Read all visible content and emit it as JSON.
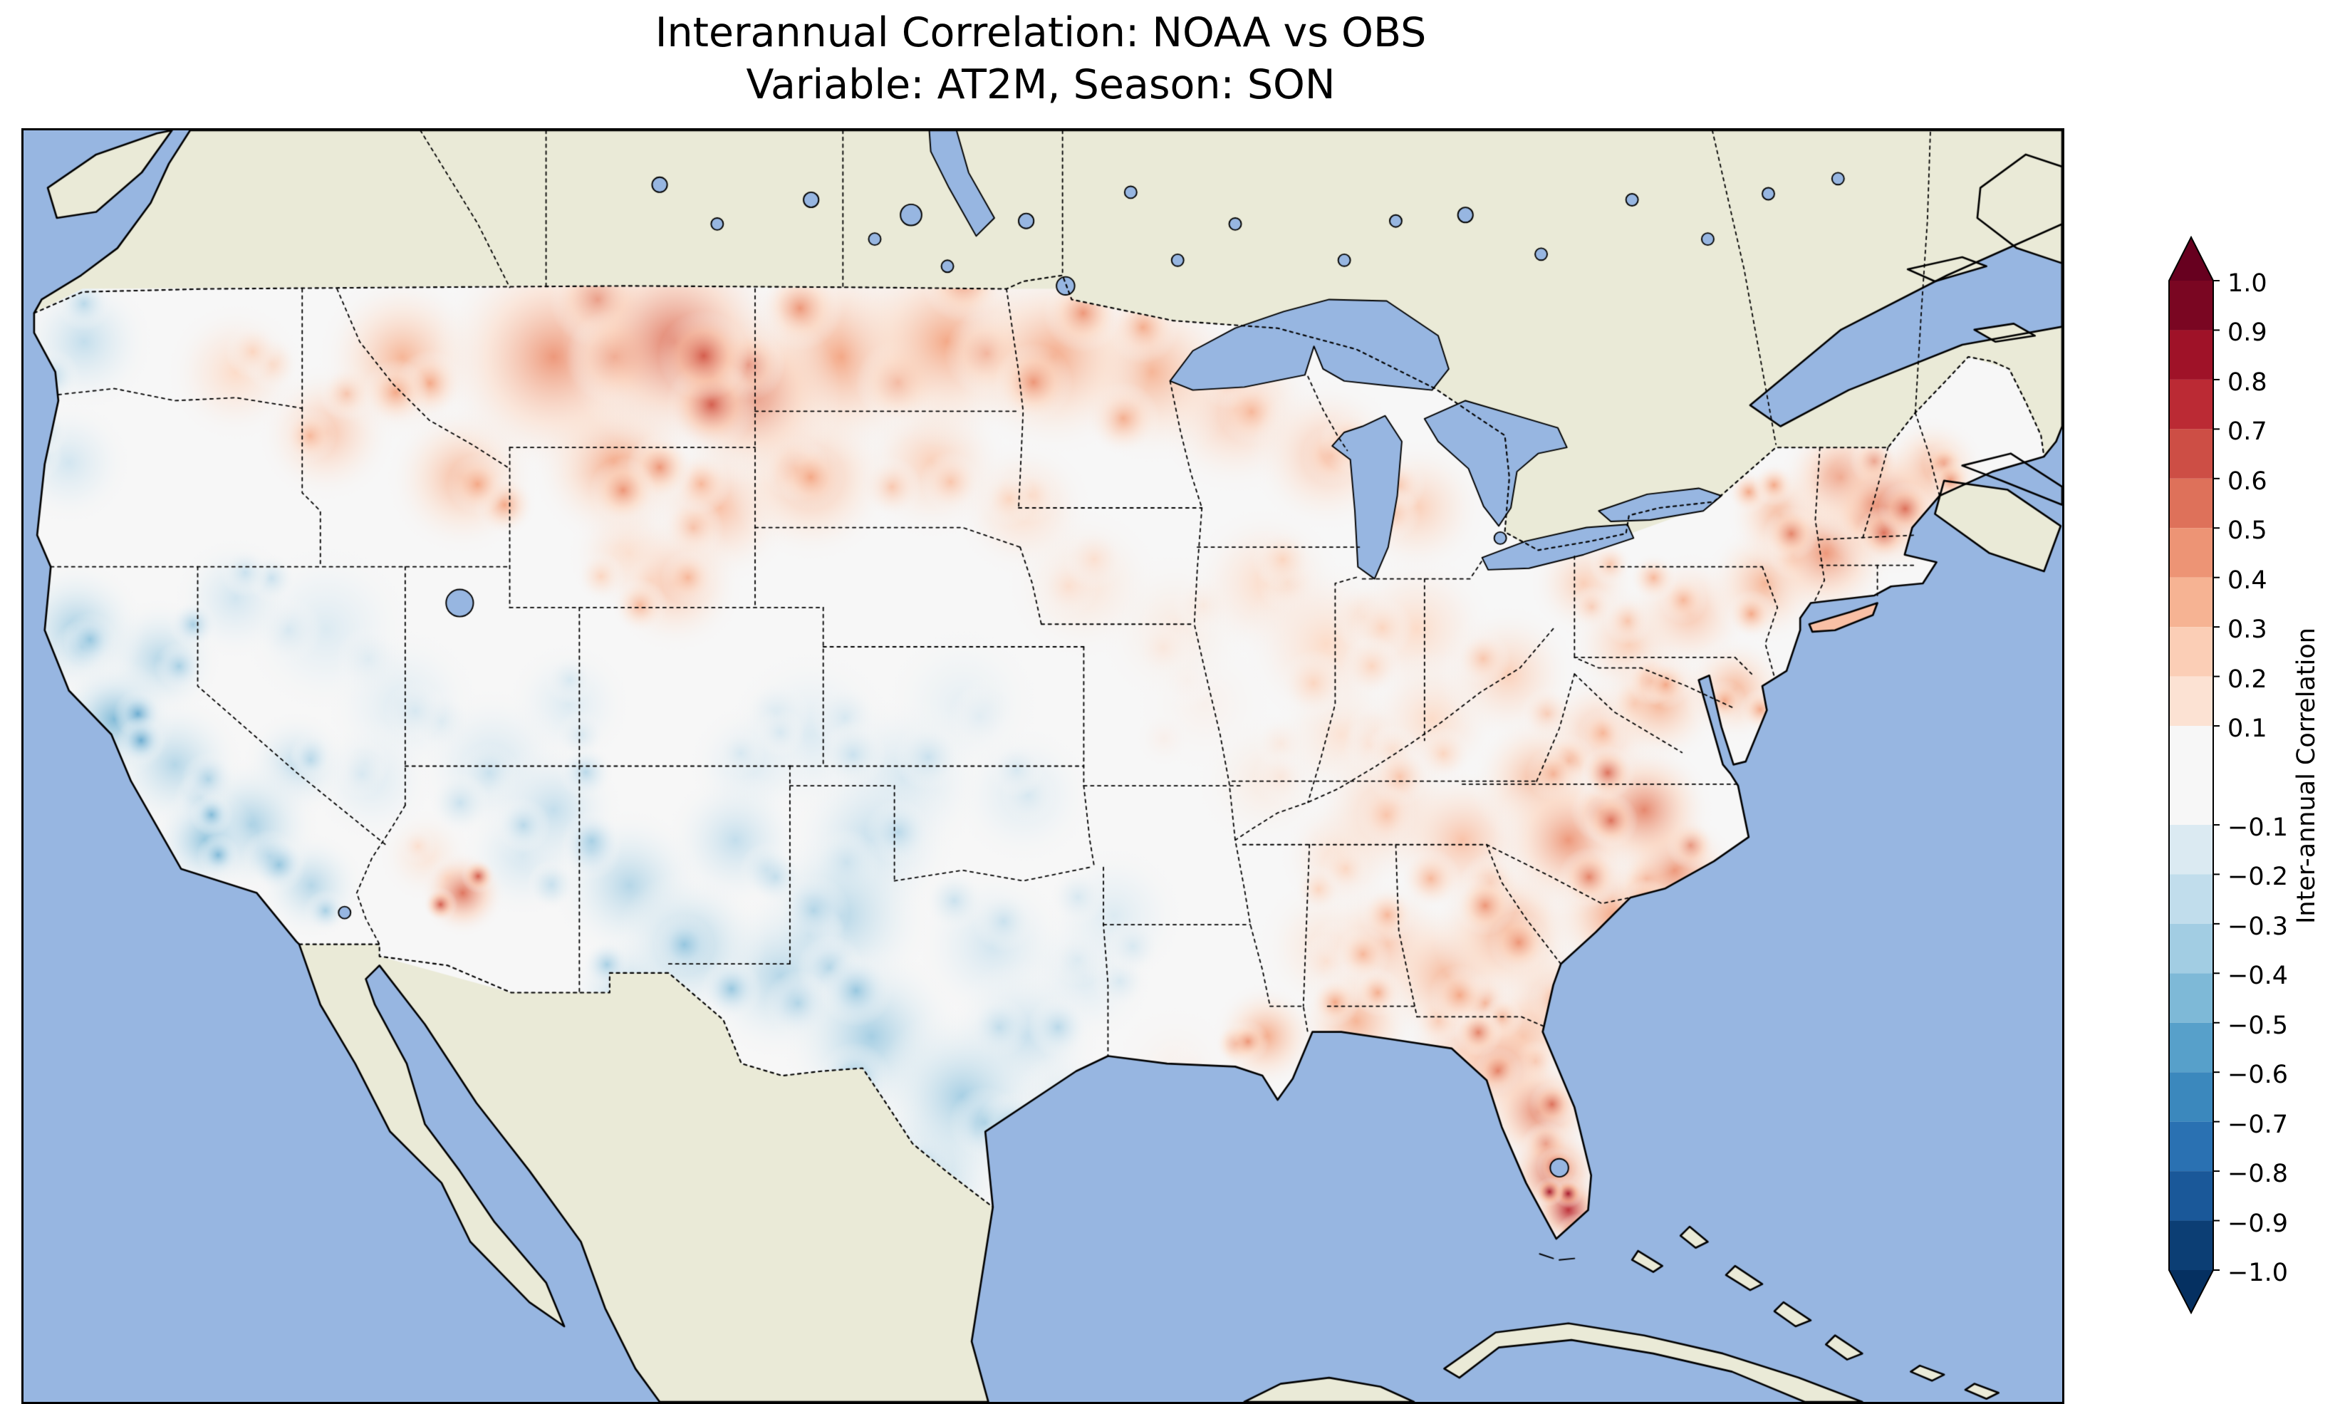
{
  "title": {
    "line1": "Interannual Correlation: NOAA vs OBS",
    "line2": "Variable: AT2M, Season: SON"
  },
  "colorbar": {
    "label": "Inter-annual Correlation",
    "levels": [
      1.0,
      0.9,
      0.8,
      0.7,
      0.6,
      0.5,
      0.4,
      0.3,
      0.2,
      0.1,
      -0.1,
      -0.2,
      -0.3,
      -0.4,
      -0.5,
      -0.6,
      -0.7,
      -0.8,
      -0.9,
      -1.0
    ],
    "tick_labels": [
      "1.0",
      "0.9",
      "0.8",
      "0.7",
      "0.6",
      "0.5",
      "0.4",
      "0.3",
      "0.2",
      "0.1",
      "−0.1",
      "−0.2",
      "−0.3",
      "−0.4",
      "−0.5",
      "−0.6",
      "−0.7",
      "−0.8",
      "−0.9",
      "−1.0"
    ],
    "extend": "both",
    "levels_note": "contour levels every 0.1, no level at 0.0"
  },
  "palette": {
    "ocean": "#97b6e1",
    "land": "#eaead7",
    "field_base": "#f7f7f7",
    "coastline": "#000000",
    "border_style": "dotted",
    "rdbu_r_stops": [
      "#053061",
      "#2166ac",
      "#4393c3",
      "#92c5de",
      "#d1e5f0",
      "#f7f7f7",
      "#fddbc7",
      "#f4a582",
      "#d6604d",
      "#b2182b",
      "#67001f"
    ]
  },
  "chart_data": {
    "type": "heatmap",
    "title": "Interannual Correlation: NOAA vs OBS — Variable: AT2M, Season: SON",
    "datasets_compared": [
      "NOAA",
      "OBS"
    ],
    "variable": "AT2M",
    "season": "SON",
    "value_name": "Inter-annual Correlation",
    "value_range": [
      -1.0,
      1.0
    ],
    "colormap": "RdBu_r (blue = negative, red = positive)",
    "region_extent": "Contiguous United States with surrounding Canada, Mexico, Gulf of Mexico and western Atlantic",
    "highlights": [
      {
        "region": "Montana / northern High Plains",
        "correlation": 0.5
      },
      {
        "region": "Dakotas and northern Minnesota",
        "correlation": 0.4
      },
      {
        "region": "Pacific Northwest coast",
        "correlation": -0.25
      },
      {
        "region": "California coast",
        "correlation": -0.4
      },
      {
        "region": "Great Basin (Nevada, Utah)",
        "correlation": -0.15
      },
      {
        "region": "Southern Arizona (local red maximum)",
        "correlation": 0.55
      },
      {
        "region": "New Mexico",
        "correlation": -0.3
      },
      {
        "region": "Texas and southern Plains",
        "correlation": -0.35
      },
      {
        "region": "Midwest / Ohio Valley",
        "correlation": 0.2
      },
      {
        "region": "Mid-Atlantic and Carolinas",
        "correlation": 0.45
      },
      {
        "region": "New England and Maine",
        "correlation": 0.5
      },
      {
        "region": "Florida peninsula",
        "correlation": 0.6
      },
      {
        "region": "South Florida tip",
        "correlation": 0.9
      }
    ],
    "field_blobs": {
      "coords": "map units, 1346 wide x 842 tall, origin top-left; entries are [x, y, radius, correlation]",
      "points": [
        [
          350,
          150,
          80,
          0.45
        ],
        [
          430,
          140,
          75,
          0.55
        ],
        [
          480,
          175,
          60,
          0.5
        ],
        [
          540,
          150,
          70,
          0.4
        ],
        [
          610,
          140,
          70,
          0.4
        ],
        [
          680,
          150,
          65,
          0.4
        ],
        [
          745,
          160,
          60,
          0.35
        ],
        [
          800,
          185,
          55,
          0.3
        ],
        [
          860,
          215,
          50,
          0.3
        ],
        [
          920,
          250,
          45,
          0.25
        ],
        [
          250,
          150,
          55,
          0.35
        ],
        [
          200,
          200,
          45,
          0.3
        ],
        [
          140,
          160,
          45,
          0.2
        ],
        [
          290,
          230,
          50,
          0.35
        ],
        [
          390,
          220,
          55,
          0.4
        ],
        [
          460,
          250,
          50,
          0.3
        ],
        [
          520,
          230,
          55,
          0.35
        ],
        [
          600,
          220,
          50,
          0.25
        ],
        [
          660,
          250,
          45,
          0.2
        ],
        [
          400,
          280,
          40,
          0.2
        ],
        [
          430,
          300,
          45,
          0.3
        ],
        [
          40,
          140,
          45,
          -0.25
        ],
        [
          30,
          220,
          40,
          -0.2
        ],
        [
          35,
          330,
          45,
          -0.35
        ],
        [
          60,
          390,
          40,
          -0.45
        ],
        [
          100,
          420,
          45,
          -0.3
        ],
        [
          90,
          350,
          40,
          -0.3
        ],
        [
          140,
          310,
          40,
          -0.2
        ],
        [
          150,
          460,
          45,
          -0.35
        ],
        [
          190,
          500,
          35,
          -0.3
        ],
        [
          120,
          470,
          35,
          -0.4
        ],
        [
          200,
          330,
          55,
          -0.15
        ],
        [
          250,
          380,
          50,
          -0.15
        ],
        [
          310,
          420,
          50,
          -0.2
        ],
        [
          350,
          450,
          45,
          -0.25
        ],
        [
          290,
          505,
          28,
          0.55
        ],
        [
          265,
          480,
          30,
          0.15
        ],
        [
          330,
          480,
          40,
          -0.2
        ],
        [
          400,
          500,
          50,
          -0.3
        ],
        [
          440,
          540,
          50,
          -0.35
        ],
        [
          400,
          570,
          40,
          -0.3
        ],
        [
          470,
          470,
          45,
          -0.25
        ],
        [
          520,
          400,
          55,
          -0.15
        ],
        [
          580,
          430,
          55,
          -0.2
        ],
        [
          560,
          470,
          55,
          -0.25
        ],
        [
          540,
          520,
          60,
          -0.3
        ],
        [
          500,
          560,
          55,
          -0.3
        ],
        [
          560,
          600,
          60,
          -0.35
        ],
        [
          620,
          640,
          60,
          -0.35
        ],
        [
          600,
          690,
          50,
          -0.3
        ],
        [
          660,
          600,
          50,
          -0.25
        ],
        [
          640,
          540,
          50,
          -0.2
        ],
        [
          700,
          560,
          45,
          -0.15
        ],
        [
          720,
          520,
          45,
          -0.15
        ],
        [
          620,
          380,
          50,
          -0.1
        ],
        [
          660,
          440,
          45,
          -0.15
        ],
        [
          690,
          650,
          40,
          -0.25
        ],
        [
          480,
          420,
          40,
          -0.15
        ],
        [
          360,
          380,
          40,
          -0.15
        ],
        [
          230,
          430,
          40,
          -0.15
        ],
        [
          180,
          420,
          35,
          -0.25
        ],
        [
          700,
          300,
          50,
          0.15
        ],
        [
          760,
          330,
          50,
          0.1
        ],
        [
          820,
          300,
          50,
          0.2
        ],
        [
          860,
          340,
          55,
          0.2
        ],
        [
          920,
          330,
          50,
          0.2
        ],
        [
          780,
          380,
          45,
          0.05
        ],
        [
          820,
          430,
          45,
          0.1
        ],
        [
          870,
          400,
          45,
          0.15
        ],
        [
          930,
          390,
          45,
          0.2
        ],
        [
          980,
          360,
          45,
          0.25
        ],
        [
          1030,
          300,
          35,
          0.25
        ],
        [
          900,
          450,
          50,
          0.25
        ],
        [
          950,
          470,
          50,
          0.3
        ],
        [
          870,
          480,
          40,
          0.2
        ],
        [
          860,
          540,
          45,
          0.15
        ],
        [
          900,
          540,
          45,
          0.3
        ],
        [
          880,
          590,
          40,
          0.35
        ],
        [
          820,
          600,
          35,
          0.4
        ],
        [
          760,
          620,
          40,
          0.05
        ],
        [
          940,
          560,
          50,
          0.35
        ],
        [
          980,
          530,
          50,
          0.4
        ],
        [
          1010,
          580,
          45,
          0.35
        ],
        [
          950,
          610,
          40,
          0.3
        ],
        [
          1020,
          470,
          50,
          0.45
        ],
        [
          1070,
          450,
          45,
          0.5
        ],
        [
          1090,
          490,
          40,
          0.45
        ],
        [
          1050,
          520,
          45,
          0.4
        ],
        [
          1000,
          430,
          45,
          0.35
        ],
        [
          1040,
          400,
          40,
          0.3
        ],
        [
          1080,
          380,
          40,
          0.35
        ],
        [
          1130,
          370,
          35,
          0.35
        ],
        [
          1060,
          340,
          40,
          0.25
        ],
        [
          1100,
          320,
          40,
          0.3
        ],
        [
          1150,
          300,
          40,
          0.35
        ],
        [
          1190,
          280,
          45,
          0.45
        ],
        [
          1230,
          250,
          45,
          0.5
        ],
        [
          1200,
          230,
          40,
          0.45
        ],
        [
          1260,
          225,
          35,
          0.4
        ],
        [
          1160,
          255,
          35,
          0.35
        ],
        [
          975,
          620,
          40,
          0.45
        ],
        [
          1000,
          650,
          38,
          0.5
        ],
        [
          1010,
          690,
          32,
          0.6
        ],
        [
          1020,
          715,
          24,
          0.75
        ],
        [
          1026,
          731,
          14,
          0.9
        ],
        [
          990,
          600,
          35,
          0.35
        ]
      ]
    }
  }
}
